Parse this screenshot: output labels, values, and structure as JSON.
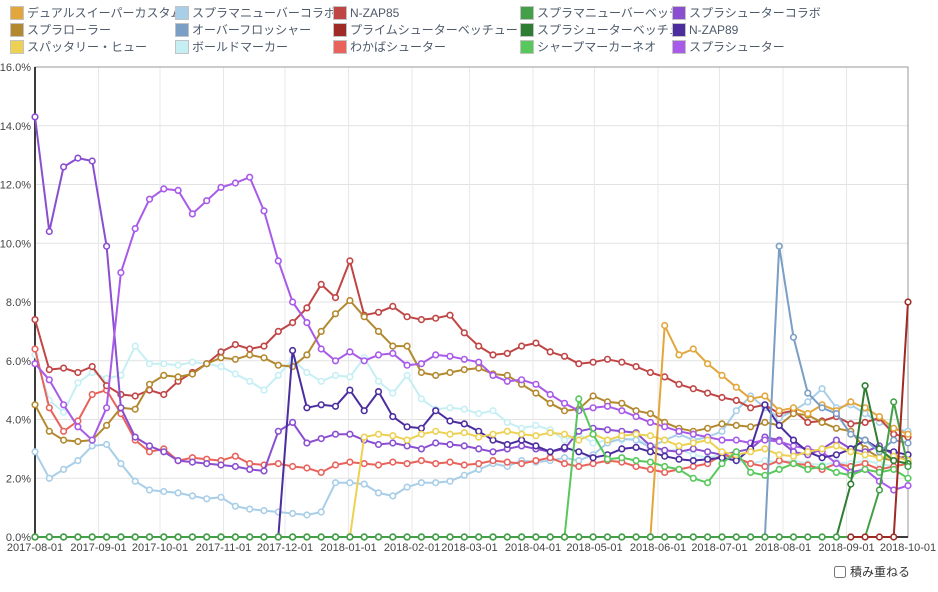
{
  "controls": {
    "stack_checkbox_label": "積み重ねる",
    "stack_checked": false
  },
  "legend_items": [
    {
      "label": "デュアルスイーパーカスタム",
      "color": "#e2a63d"
    },
    {
      "label": "スプラマニューバーコラボ",
      "color": "#a8cee8"
    },
    {
      "label": "N-ZAP85",
      "color": "#c04545"
    },
    {
      "label": "スプラマニューバーベッチュー",
      "color": "#44a048"
    },
    {
      "label": "スプラシューターコラボ",
      "color": "#8a4fd0"
    },
    {
      "label": "スプラローラー",
      "color": "#b3892f"
    },
    {
      "label": "オーバーフロッシャー",
      "color": "#7b9ec4"
    },
    {
      "label": "プライムシューターベッチュー",
      "color": "#9e2b25"
    },
    {
      "label": "スプラシューターベッチュー",
      "color": "#2e7d32"
    },
    {
      "label": "N-ZAP89",
      "color": "#4b2d9e"
    },
    {
      "label": "スパッタリー・ヒュー",
      "color": "#edd152"
    },
    {
      "label": "ボールドマーカー",
      "color": "#c6eff4"
    },
    {
      "label": "わかばシューター",
      "color": "#e8635c"
    },
    {
      "label": "シャープマーカーネオ",
      "color": "#58c85c"
    },
    {
      "label": "スプラシューター",
      "color": "#a85ae8"
    }
  ],
  "chart_data": {
    "type": "line",
    "title": "",
    "xlabel": "",
    "ylabel": "",
    "grid": true,
    "legend_position": "top",
    "ylim": [
      0,
      16
    ],
    "y_tick_step": 2,
    "y_tick_labels": [
      "16.0%",
      "14.0%",
      "12.0%",
      "10.0%",
      "8.0%",
      "6.0%",
      "4.0%",
      "2.0%",
      "0.0%"
    ],
    "x_start_date": "2017-08-01",
    "x_end_date": "2018-10-01",
    "x_span_days": 426,
    "x_point_count": 62,
    "x_tick_labels": [
      "2017-08-01",
      "2017-09-01",
      "2017-10-01",
      "2017-11-01",
      "2017-12-01",
      "2018-01-01",
      "2018-02-01",
      "2018-03-01",
      "2018-04-01",
      "2018-05-01",
      "2018-06-01",
      "2018-07-01",
      "2018-08-01",
      "2018-09-01",
      "2018-10-01"
    ],
    "x_tick_day_offsets": [
      0,
      31,
      61,
      92,
      122,
      153,
      184,
      212,
      243,
      273,
      304,
      334,
      365,
      396,
      426
    ],
    "series": [
      {
        "key": "bold-marker",
        "name": "ボールドマーカー",
        "color": "#c6eff4",
        "values": [
          6.2,
          4.65,
          4.25,
          5.25,
          5.6,
          5.4,
          5.5,
          6.5,
          5.9,
          5.9,
          5.85,
          5.95,
          5.9,
          5.8,
          5.55,
          5.3,
          5.0,
          5.5,
          6.05,
          5.6,
          5.3,
          5.5,
          5.45,
          6.1,
          5.3,
          4.9,
          5.5,
          4.7,
          4.35,
          4.4,
          4.35,
          4.2,
          4.3,
          3.9,
          3.7,
          3.8,
          3.65,
          3.3,
          3.5,
          3.2,
          3.3,
          3.3,
          3.35,
          3.1,
          2.9,
          3.0,
          2.8,
          2.7,
          2.8,
          2.6,
          2.5,
          2.6,
          2.55,
          2.6,
          2.5,
          2.45,
          2.55,
          2.5,
          2.6,
          2.5,
          2.4,
          2.5
        ]
      },
      {
        "key": "maneuver-collab",
        "name": "スプラマニューバーコラボ",
        "color": "#a8cee8",
        "values": [
          2.9,
          2.0,
          2.3,
          2.6,
          3.1,
          3.15,
          2.5,
          1.9,
          1.6,
          1.55,
          1.5,
          1.4,
          1.3,
          1.35,
          1.05,
          0.95,
          0.9,
          0.85,
          0.8,
          0.75,
          0.85,
          1.85,
          1.85,
          1.8,
          1.5,
          1.4,
          1.7,
          1.85,
          1.85,
          1.9,
          2.1,
          2.3,
          2.5,
          2.4,
          2.6,
          2.55,
          2.6,
          2.7,
          2.6,
          2.8,
          3.2,
          3.35,
          3.3,
          3.05,
          3.3,
          3.5,
          3.3,
          3.4,
          3.6,
          4.3,
          4.8,
          4.4,
          4.05,
          4.3,
          4.6,
          5.05,
          4.4,
          4.5,
          4.2,
          3.9,
          3.7,
          3.6
        ]
      },
      {
        "key": "wakaba-shooter",
        "name": "わかばシューター",
        "color": "#e8635c",
        "values": [
          6.4,
          4.4,
          3.6,
          3.95,
          4.85,
          5.0,
          4.2,
          3.3,
          2.9,
          3.0,
          2.6,
          2.7,
          2.65,
          2.6,
          2.75,
          2.5,
          2.45,
          2.5,
          2.4,
          2.35,
          2.2,
          2.45,
          2.55,
          2.5,
          2.45,
          2.55,
          2.5,
          2.6,
          2.5,
          2.55,
          2.45,
          2.5,
          2.6,
          2.55,
          2.5,
          2.6,
          2.7,
          2.5,
          2.4,
          2.5,
          2.6,
          2.55,
          2.4,
          2.3,
          2.2,
          2.3,
          2.4,
          2.5,
          2.8,
          2.7,
          2.5,
          2.4,
          2.6,
          2.5,
          2.45,
          2.3,
          2.5,
          2.4,
          2.5,
          2.3,
          2.4,
          2.5
        ]
      },
      {
        "key": "nzap85",
        "name": "N-ZAP85",
        "color": "#c04545",
        "values": [
          7.4,
          5.7,
          5.75,
          5.6,
          5.8,
          5.15,
          4.85,
          4.8,
          5.0,
          4.85,
          5.3,
          5.6,
          5.9,
          6.3,
          6.55,
          6.4,
          6.5,
          7.0,
          7.3,
          7.8,
          8.6,
          8.15,
          9.4,
          7.55,
          7.65,
          7.85,
          7.5,
          7.4,
          7.45,
          7.55,
          6.95,
          6.5,
          6.2,
          6.25,
          6.5,
          6.6,
          6.3,
          6.15,
          5.9,
          5.95,
          6.05,
          5.95,
          5.8,
          5.6,
          5.45,
          5.2,
          5.05,
          4.9,
          4.75,
          4.65,
          4.4,
          4.5,
          4.2,
          4.3,
          3.9,
          3.95,
          4.1,
          3.85,
          3.9,
          4.05,
          3.5,
          3.4
        ]
      },
      {
        "key": "splat-roller",
        "name": "スプラローラー",
        "color": "#b3892f",
        "values": [
          4.5,
          3.6,
          3.3,
          3.25,
          3.3,
          3.8,
          4.4,
          4.35,
          5.2,
          5.5,
          5.45,
          5.55,
          5.9,
          6.1,
          6.05,
          6.2,
          6.1,
          5.85,
          5.8,
          6.2,
          7.0,
          7.6,
          8.05,
          7.5,
          7.0,
          6.5,
          6.5,
          5.6,
          5.5,
          5.6,
          5.7,
          5.75,
          5.55,
          5.5,
          5.2,
          4.9,
          4.55,
          4.3,
          4.35,
          4.8,
          4.6,
          4.55,
          4.3,
          4.2,
          3.9,
          3.7,
          3.6,
          3.7,
          3.85,
          3.8,
          3.75,
          3.9,
          3.8,
          4.2,
          4.15,
          3.9,
          3.7,
          3.6,
          3.0,
          2.7,
          2.6,
          2.8
        ]
      },
      {
        "key": "splattershot-collab",
        "name": "スプラシューターコラボ",
        "color": "#8a4fd0",
        "values": [
          14.3,
          10.4,
          12.6,
          12.9,
          12.8,
          9.9,
          4.4,
          3.4,
          3.1,
          2.9,
          2.6,
          2.55,
          2.5,
          2.45,
          2.4,
          2.3,
          2.25,
          3.6,
          3.9,
          3.2,
          3.35,
          3.5,
          3.5,
          3.3,
          3.15,
          3.2,
          3.1,
          3.0,
          3.2,
          3.15,
          3.1,
          3.0,
          2.9,
          3.0,
          3.1,
          3.0,
          2.9,
          3.0,
          3.6,
          3.7,
          3.65,
          3.6,
          3.55,
          3.1,
          2.95,
          2.9,
          3.0,
          2.9,
          2.8,
          2.9,
          3.0,
          3.4,
          3.3,
          2.9,
          2.8,
          3.0,
          3.3,
          3.0,
          2.9,
          3.1,
          2.8,
          2.6
        ]
      },
      {
        "key": "splattershot",
        "name": "スプラシューター",
        "color": "#a85ae8",
        "values": [
          5.9,
          5.35,
          4.5,
          3.75,
          3.3,
          4.4,
          9.0,
          10.5,
          11.5,
          11.85,
          11.8,
          11.0,
          11.45,
          11.9,
          12.05,
          12.25,
          11.1,
          9.4,
          8.0,
          7.3,
          6.4,
          6.0,
          6.3,
          6.0,
          6.2,
          6.25,
          5.85,
          5.9,
          6.2,
          6.15,
          6.05,
          5.95,
          5.5,
          5.3,
          5.35,
          5.2,
          4.85,
          4.55,
          4.3,
          4.4,
          4.45,
          4.3,
          4.1,
          3.9,
          3.75,
          3.6,
          3.5,
          3.4,
          3.3,
          3.3,
          3.2,
          3.3,
          3.25,
          3.1,
          3.0,
          2.9,
          2.5,
          2.2,
          2.3,
          1.9,
          1.6,
          1.75
        ]
      },
      {
        "key": "nzap89",
        "name": "N-ZAP89",
        "color": "#4b2d9e",
        "values": [
          0,
          0,
          0,
          0,
          0,
          0,
          0,
          0,
          0,
          0,
          0,
          0,
          0,
          0,
          0,
          0,
          0,
          0,
          6.35,
          4.4,
          4.5,
          4.45,
          5.0,
          4.3,
          4.95,
          4.1,
          3.75,
          3.7,
          4.3,
          3.95,
          3.85,
          3.6,
          3.3,
          3.15,
          3.3,
          3.1,
          2.9,
          3.05,
          2.9,
          2.7,
          2.8,
          3.0,
          3.05,
          2.9,
          2.75,
          2.65,
          2.6,
          2.65,
          2.7,
          2.6,
          3.0,
          4.5,
          3.8,
          3.3,
          2.9,
          2.7,
          2.8,
          3.0,
          3.3,
          3.0,
          2.9,
          2.8
        ]
      },
      {
        "key": "spattery-hue",
        "name": "スパッタリー・ヒュー",
        "color": "#edd152",
        "values": [
          0,
          0,
          0,
          0,
          0,
          0,
          0,
          0,
          0,
          0,
          0,
          0,
          0,
          0,
          0,
          0,
          0,
          0,
          0,
          0,
          0,
          0,
          0,
          3.4,
          3.5,
          3.45,
          3.3,
          3.5,
          3.6,
          3.5,
          3.55,
          3.4,
          3.5,
          3.6,
          3.5,
          3.45,
          3.55,
          3.5,
          3.3,
          3.5,
          3.3,
          3.45,
          3.5,
          3.45,
          3.3,
          3.1,
          3.2,
          3.3,
          2.9,
          2.8,
          2.9,
          3.0,
          2.8,
          2.75,
          2.9,
          3.0,
          3.1,
          2.9,
          2.8,
          2.7,
          2.75,
          2.6
        ]
      },
      {
        "key": "dual-sweeper-custom",
        "name": "デュアルスイーパーカスタム",
        "color": "#e2a63d",
        "values": [
          0,
          0,
          0,
          0,
          0,
          0,
          0,
          0,
          0,
          0,
          0,
          0,
          0,
          0,
          0,
          0,
          0,
          0,
          0,
          0,
          0,
          0,
          0,
          0,
          0,
          0,
          0,
          0,
          0,
          0,
          0,
          0,
          0,
          0,
          0,
          0,
          0,
          0,
          0,
          0,
          0,
          0,
          0,
          0,
          7.2,
          6.2,
          6.4,
          5.9,
          5.5,
          5.1,
          4.7,
          4.8,
          4.3,
          4.4,
          4.2,
          4.5,
          4.3,
          4.6,
          4.4,
          4.1,
          3.7,
          3.5
        ]
      },
      {
        "key": "overflosher",
        "name": "オーバーフロッシャー",
        "color": "#7b9ec4",
        "values": [
          0,
          0,
          0,
          0,
          0,
          0,
          0,
          0,
          0,
          0,
          0,
          0,
          0,
          0,
          0,
          0,
          0,
          0,
          0,
          0,
          0,
          0,
          0,
          0,
          0,
          0,
          0,
          0,
          0,
          0,
          0,
          0,
          0,
          0,
          0,
          0,
          0,
          0,
          0,
          0,
          0,
          0,
          0,
          0,
          0,
          0,
          0,
          0,
          0,
          0,
          0,
          0,
          9.9,
          6.8,
          4.9,
          4.4,
          4.2,
          3.5,
          3.3,
          2.9,
          3.3,
          3.2
        ]
      },
      {
        "key": "sharp-marker-neo",
        "name": "シャープマーカーネオ",
        "color": "#58c85c",
        "values": [
          0,
          0,
          0,
          0,
          0,
          0,
          0,
          0,
          0,
          0,
          0,
          0,
          0,
          0,
          0,
          0,
          0,
          0,
          0,
          0,
          0,
          0,
          0,
          0,
          0,
          0,
          0,
          0,
          0,
          0,
          0,
          0,
          0,
          0,
          0,
          0,
          0,
          0,
          4.7,
          3.5,
          2.65,
          2.7,
          2.6,
          2.55,
          2.4,
          2.3,
          2.0,
          1.85,
          2.5,
          2.9,
          2.2,
          2.1,
          2.3,
          2.5,
          2.3,
          2.4,
          2.2,
          2.1,
          2.3,
          2.2,
          2.3,
          2.0
        ]
      },
      {
        "key": "splattershot-becchu",
        "name": "スプラシューターベッチュー",
        "color": "#2e7d32",
        "values": [
          0,
          0,
          0,
          0,
          0,
          0,
          0,
          0,
          0,
          0,
          0,
          0,
          0,
          0,
          0,
          0,
          0,
          0,
          0,
          0,
          0,
          0,
          0,
          0,
          0,
          0,
          0,
          0,
          0,
          0,
          0,
          0,
          0,
          0,
          0,
          0,
          0,
          0,
          0,
          0,
          0,
          0,
          0,
          0,
          0,
          0,
          0,
          0,
          0,
          0,
          0,
          0,
          0,
          0,
          0,
          0,
          0,
          1.8,
          5.15,
          3.0,
          2.6,
          2.5
        ]
      },
      {
        "key": "maneuver-becchu",
        "name": "スプラマニューバーベッチュー",
        "color": "#44a048",
        "values": [
          0,
          0,
          0,
          0,
          0,
          0,
          0,
          0,
          0,
          0,
          0,
          0,
          0,
          0,
          0,
          0,
          0,
          0,
          0,
          0,
          0,
          0,
          0,
          0,
          0,
          0,
          0,
          0,
          0,
          0,
          0,
          0,
          0,
          0,
          0,
          0,
          0,
          0,
          0,
          0,
          0,
          0,
          0,
          0,
          0,
          0,
          0,
          0,
          0,
          0,
          0,
          0,
          0,
          0,
          0,
          0,
          0,
          0,
          0,
          1.6,
          4.6,
          2.4
        ]
      },
      {
        "key": "prime-shooter-becchu",
        "name": "プライムシューターベッチュー",
        "color": "#9e2b25",
        "values": [
          null,
          null,
          null,
          null,
          null,
          null,
          null,
          null,
          null,
          null,
          null,
          null,
          null,
          null,
          null,
          null,
          null,
          null,
          null,
          null,
          null,
          null,
          null,
          null,
          null,
          null,
          null,
          null,
          null,
          null,
          null,
          null,
          null,
          null,
          null,
          null,
          null,
          null,
          null,
          null,
          null,
          null,
          null,
          null,
          null,
          null,
          null,
          null,
          null,
          null,
          null,
          null,
          null,
          null,
          null,
          null,
          null,
          0,
          0,
          0,
          0,
          8.0
        ]
      }
    ]
  }
}
